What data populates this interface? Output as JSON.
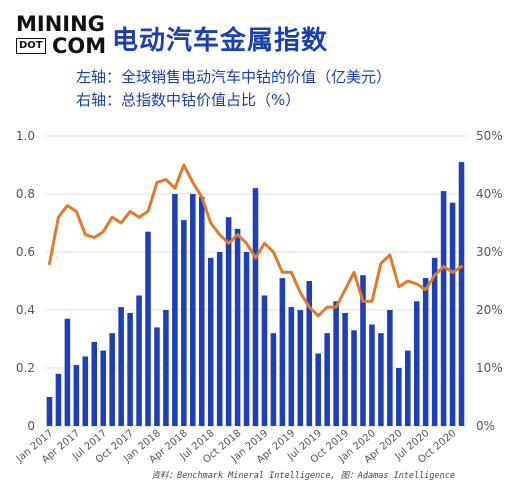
{
  "brand": {
    "line1": "MINING",
    "box": "DOT",
    "line2": "COM"
  },
  "header": {
    "title": "电动汽车金属指数",
    "subtitle_left": "左轴：全球销售电动汽车中钴的价值（亿美元）",
    "subtitle_right": "右轴：总指数中钴价值占比（%）"
  },
  "source": "资料：Benchmark Mineral Intelligence, 图：Adamas Intelligence",
  "colors": {
    "bars": "#1f3fb8",
    "line": "#e07b2a",
    "title": "#1a3fb0"
  },
  "chart_data": {
    "type": "bar+line",
    "x_tick_labels": [
      "Jan 2017",
      "Apr 2017",
      "Jul 2017",
      "Oct 2017",
      "Jan 2018",
      "Apr 2018",
      "Jul 2018",
      "Oct 2018",
      "Jan 2019",
      "Apr 2019",
      "Jul 2019",
      "Oct 2019",
      "Jan 2020",
      "Apr 2020",
      "Jul 2020",
      "Oct 2020"
    ],
    "left_axis": {
      "ylim": [
        0,
        1.0
      ],
      "ticks": [
        "0",
        "0.2",
        "0.4",
        "0.6",
        "0.8",
        "1.0"
      ]
    },
    "right_axis": {
      "ylim": [
        0,
        50
      ],
      "ticks": [
        "0%",
        "10%",
        "20%",
        "30%",
        "40%",
        "50%"
      ]
    },
    "series": [
      {
        "type": "bar",
        "axis": "left",
        "values": [
          0.1,
          0.18,
          0.37,
          0.21,
          0.24,
          0.29,
          0.26,
          0.32,
          0.41,
          0.39,
          0.45,
          0.67,
          0.34,
          0.4,
          0.8,
          0.71,
          0.8,
          0.79,
          0.58,
          0.6,
          0.72,
          0.68,
          0.6,
          0.82,
          0.45,
          0.32,
          0.51,
          0.41,
          0.4,
          0.5,
          0.25,
          0.32,
          0.43,
          0.39,
          0.33,
          0.52,
          0.35,
          0.32,
          0.4,
          0.2,
          0.26,
          0.43,
          0.51,
          0.58,
          0.81,
          0.77,
          0.91
        ]
      },
      {
        "type": "line",
        "axis": "right",
        "values": [
          28,
          36,
          38,
          37,
          33,
          32.5,
          33.5,
          36,
          35,
          37,
          36,
          37,
          42,
          42.5,
          41,
          45,
          42,
          39.5,
          35,
          33,
          31.5,
          33,
          31.5,
          29,
          31.5,
          30,
          26.5,
          26.5,
          23,
          20.5,
          19,
          20.5,
          20.5,
          23.5,
          26.5,
          21.5,
          21.5,
          28,
          29.5,
          24,
          25,
          24.5,
          23.5,
          26,
          27.5,
          26.5,
          27.5
        ]
      }
    ]
  }
}
